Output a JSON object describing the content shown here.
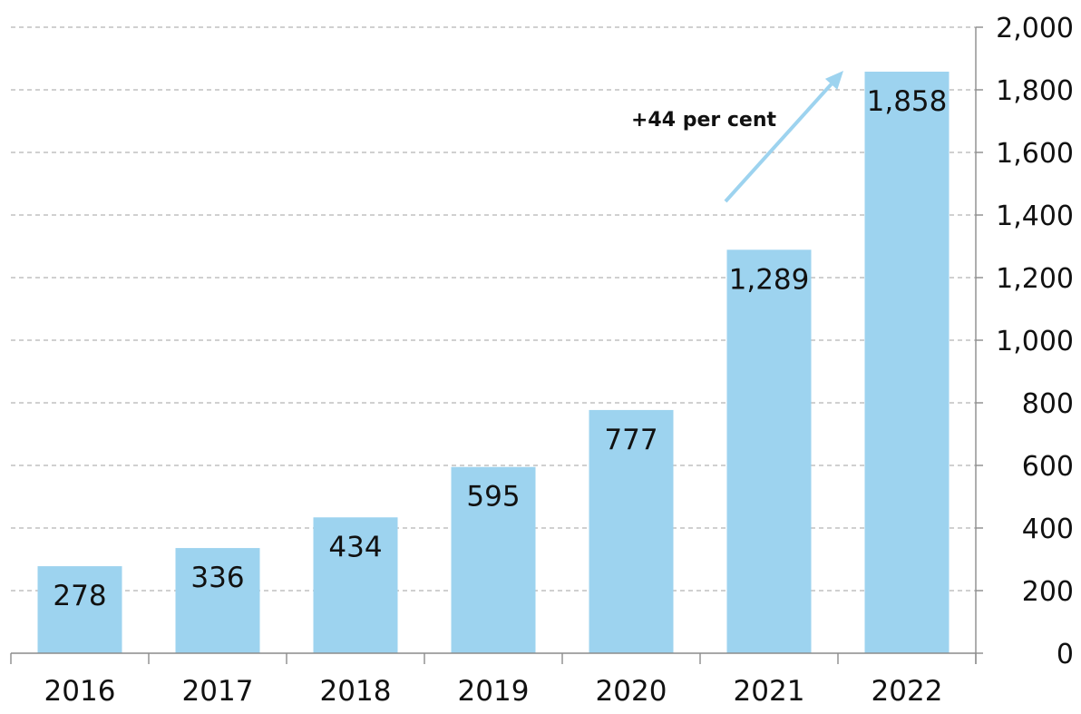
{
  "chart_data": {
    "type": "bar",
    "title": "",
    "xlabel": "",
    "ylabel": "",
    "categories": [
      "2016",
      "2017",
      "2018",
      "2019",
      "2020",
      "2021",
      "2022"
    ],
    "values": [
      278,
      336,
      434,
      595,
      777,
      1289,
      1858
    ],
    "value_labels": [
      "278",
      "336",
      "434",
      "595",
      "777",
      "1,289",
      "1,858"
    ],
    "ylim": [
      0,
      2000
    ],
    "y_ticks": [
      0,
      200,
      400,
      600,
      800,
      1000,
      1200,
      1400,
      1600,
      1800,
      2000
    ],
    "y_tick_labels": [
      "0",
      "200",
      "400",
      "600",
      "800",
      "1,000",
      "1,200",
      "1,400",
      "1,600",
      "1,800",
      "2,000"
    ],
    "y_axis_position": "right",
    "grid": true,
    "bar_color": "#9dd3ef",
    "annotation": {
      "text": "+44 per cent",
      "from_category": "2021",
      "to_category": "2022"
    }
  }
}
